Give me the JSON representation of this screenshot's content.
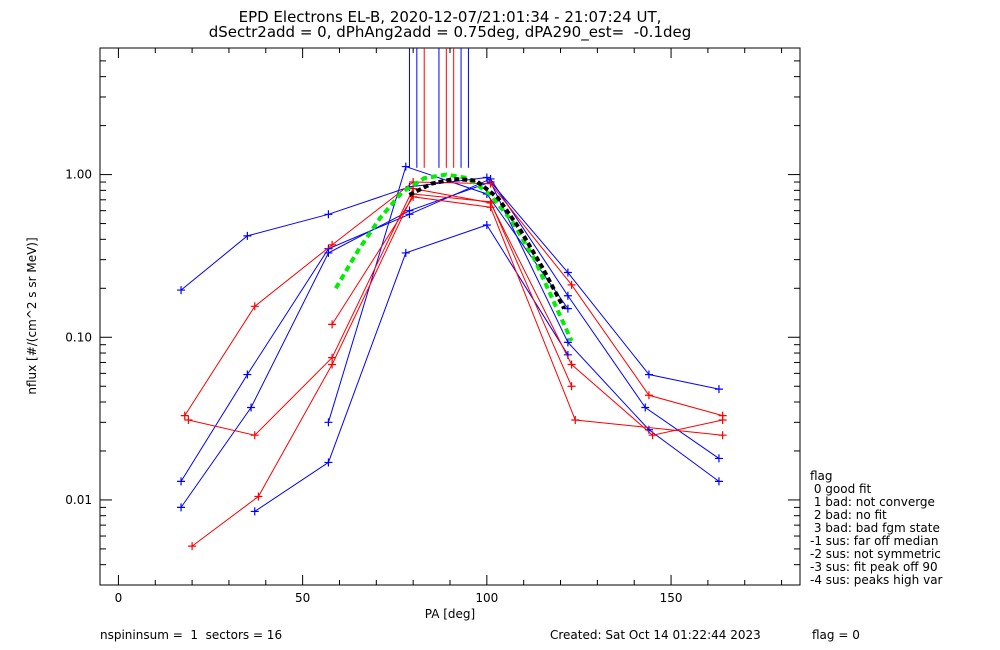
{
  "title_line1": "EPD Electrons EL-B, 2020-12-07/21:01:34 - 21:07:24 UT,",
  "title_line2": "dSectr2add = 0, dPhAng2add = 0.75deg, dPA290_est=  -0.1deg",
  "footer": {
    "left": "nspininsum =  1  sectors = 16",
    "created": "Created: Sat Oct 14 01:22:44 2023",
    "flag": "flag = 0"
  },
  "legend": {
    "title": "flag",
    "items": [
      " 0 good fit",
      " 1 bad: not converge",
      " 2 bad: no fit",
      " 3 bad: bad fgm state",
      "-1 sus: far off median",
      "-2 sus: not symmetric",
      "-3 sus: fit peak off 90",
      "-4 sus: peaks high var"
    ]
  },
  "colors": {
    "blue": "#0000ff",
    "red": "#ff0000",
    "green": "#00ee00",
    "black": "#000000"
  },
  "chart_data": {
    "type": "line",
    "xlabel": "PA [deg]",
    "ylabel": "nflux [#/(cm^2 s sr MeV)]",
    "xlim": [
      -5,
      185
    ],
    "ylim": [
      0.003,
      6.0
    ],
    "ylog": true,
    "xticks": [
      0,
      50,
      100,
      150
    ],
    "xtick_labels": [
      "0",
      "50",
      "100",
      "150"
    ],
    "yticks": [
      0.01,
      0.1,
      1.0
    ],
    "ytick_labels": [
      "0.01",
      "0.10",
      "1.00"
    ],
    "series": [
      {
        "color": "blue",
        "x": [
          17,
          35,
          57,
          79,
          100,
          122,
          144,
          163
        ],
        "y": [
          0.195,
          0.42,
          0.57,
          0.84,
          0.96,
          0.25,
          0.059,
          0.048
        ]
      },
      {
        "color": "blue",
        "x": [
          17,
          35,
          57,
          79,
          101,
          122,
          143,
          163
        ],
        "y": [
          0.013,
          0.059,
          0.35,
          0.57,
          0.94,
          0.18,
          0.037,
          0.018
        ]
      },
      {
        "color": "blue",
        "x": [
          17,
          36,
          57,
          79,
          101,
          122,
          144,
          163
        ],
        "y": [
          0.009,
          0.037,
          0.33,
          0.6,
          0.9,
          0.093,
          0.027,
          0.013
        ]
      },
      {
        "color": "blue",
        "x": [
          37,
          57,
          78,
          100,
          122
        ],
        "y": [
          0.0085,
          0.017,
          0.33,
          0.49,
          0.078
        ]
      },
      {
        "color": "blue",
        "x": [
          57,
          78,
          100,
          122
        ],
        "y": [
          0.03,
          1.12,
          0.76,
          0.15
        ]
      },
      {
        "color": "red",
        "x": [
          18,
          37,
          58,
          80,
          101,
          123,
          144,
          164
        ],
        "y": [
          0.033,
          0.155,
          0.37,
          0.9,
          0.88,
          0.21,
          0.044,
          0.033
        ]
      },
      {
        "color": "red",
        "x": [
          19,
          37,
          58,
          80,
          101,
          123,
          145,
          164
        ],
        "y": [
          0.031,
          0.025,
          0.075,
          0.82,
          0.67,
          0.068,
          0.025,
          0.031
        ]
      },
      {
        "color": "red",
        "x": [
          20,
          38,
          58,
          80,
          101,
          123
        ],
        "y": [
          0.0052,
          0.0105,
          0.068,
          0.76,
          0.68,
          0.05
        ]
      },
      {
        "color": "red",
        "x": [
          58,
          80,
          101,
          124,
          164
        ],
        "y": [
          0.12,
          0.73,
          0.63,
          0.031,
          0.025
        ]
      }
    ],
    "vertical_markers": {
      "y_low": 1.1,
      "blue_x": [
        79,
        81,
        87,
        93,
        95
      ],
      "red_x": [
        83,
        89,
        91
      ]
    },
    "fits": [
      {
        "name": "green-fit",
        "color": "green",
        "x": [
          59,
          65,
          71,
          77,
          83,
          89,
          95,
          101,
          107,
          113,
          119,
          123
        ],
        "y": [
          0.2,
          0.34,
          0.54,
          0.78,
          0.95,
          1.0,
          0.95,
          0.75,
          0.51,
          0.3,
          0.15,
          0.095
        ]
      },
      {
        "name": "black-fit",
        "color": "black",
        "x": [
          79,
          85,
          91,
          97,
          103,
          109,
          115,
          121
        ],
        "y": [
          0.75,
          0.88,
          0.94,
          0.92,
          0.72,
          0.46,
          0.27,
          0.15
        ]
      }
    ]
  }
}
